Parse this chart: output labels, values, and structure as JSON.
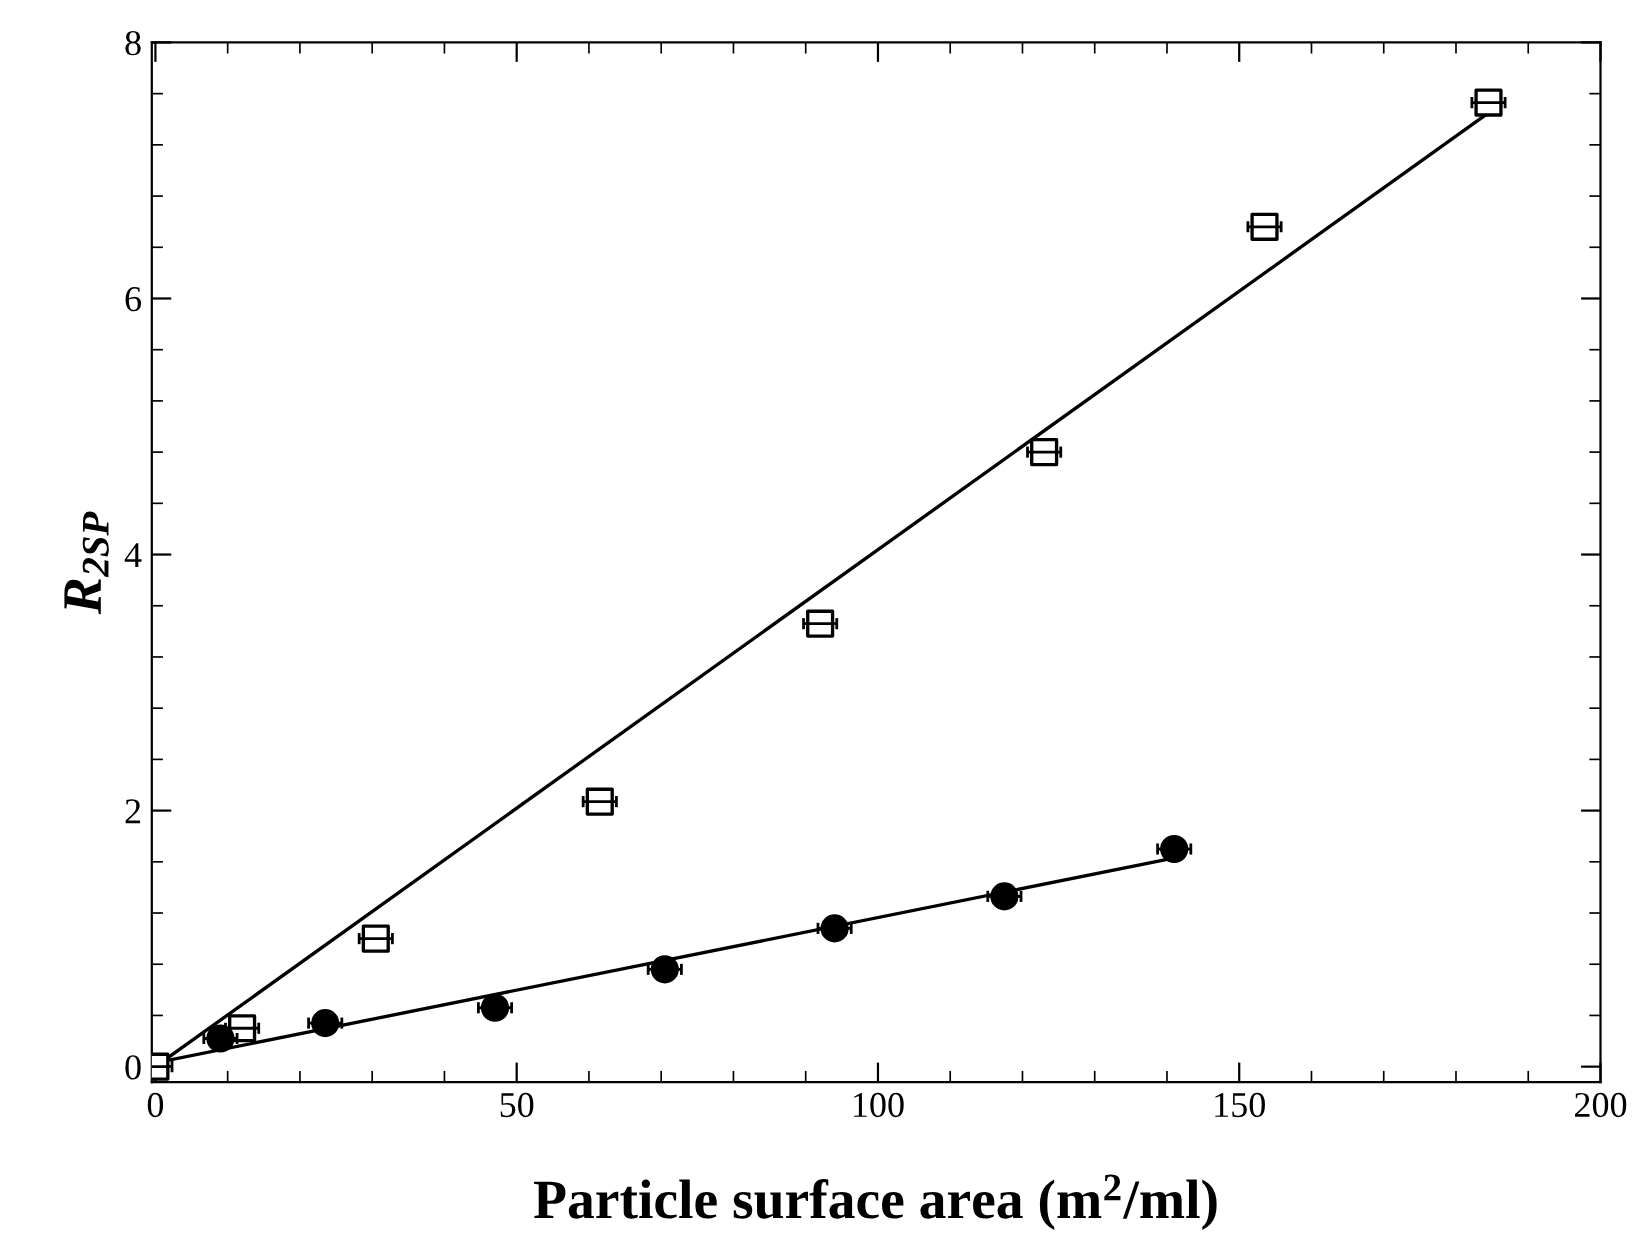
{
  "chart_data": {
    "type": "scatter",
    "xlabel": "Particle surface area (m$^{2}$/ml)",
    "ylabel": "R$_{2SP}$",
    "xlim": [
      -0.5,
      200
    ],
    "ylim": [
      -0.12,
      8
    ],
    "xticks": [
      0,
      50,
      100,
      150,
      200
    ],
    "yticks": [
      0,
      2,
      4,
      6,
      8
    ],
    "grid": false,
    "legend": false,
    "series": [
      {
        "marker": "square",
        "color": "#000000",
        "x": [
          0,
          12,
          30.5,
          61.5,
          92,
          123,
          153.5,
          184.5
        ],
        "values": [
          0,
          0.3,
          1.0,
          2.07,
          3.46,
          4.8,
          6.56,
          7.53
        ],
        "xerrors": [
          2.3,
          2.3,
          2.3,
          2.3,
          2.3,
          2.3,
          2.3,
          2.3
        ]
      },
      {
        "marker": "circle",
        "color": "#000000",
        "x": [
          9,
          23.5,
          47,
          70.5,
          94,
          117.5,
          141
        ],
        "values": [
          0.22,
          0.34,
          0.46,
          0.76,
          1.08,
          1.33,
          1.7
        ],
        "xerrors": [
          2.3,
          2.3,
          2.3,
          2.3,
          2.3,
          2.3,
          2.3
        ]
      },
      {
        "type": "line",
        "color": "#000000",
        "line_style": "solid",
        "x": [
          0,
          184.5
        ],
        "values": [
          0.0,
          7.45
        ]
      },
      {
        "type": "line",
        "color": "#000000",
        "line_style": "solid",
        "x": [
          0,
          141
        ],
        "values": [
          0.03,
          1.63
        ]
      }
    ]
  }
}
